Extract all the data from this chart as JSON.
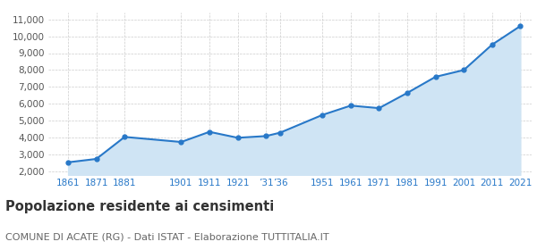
{
  "years": [
    1861,
    1871,
    1881,
    1901,
    1911,
    1921,
    1931,
    1936,
    1951,
    1961,
    1971,
    1981,
    1991,
    2001,
    2011,
    2021
  ],
  "population": [
    2550,
    2750,
    4050,
    3750,
    4350,
    4000,
    4100,
    4300,
    5350,
    5900,
    5750,
    6650,
    7600,
    8000,
    9500,
    10600
  ],
  "yticks": [
    2000,
    3000,
    4000,
    5000,
    6000,
    7000,
    8000,
    9000,
    10000,
    11000
  ],
  "ylim": [
    1800,
    11400
  ],
  "xlim": [
    1854,
    2025
  ],
  "x_tick_positions": [
    1861,
    1871,
    1881,
    1901,
    1911,
    1921,
    1931,
    1936,
    1951,
    1961,
    1971,
    1981,
    1991,
    2001,
    2011,
    2021
  ],
  "x_tick_labels": [
    "1861",
    "1871",
    "1881",
    "1901",
    "1911",
    "1921",
    "’31",
    "’36",
    "1951",
    "1961",
    "1971",
    "1981",
    "1991",
    "2001",
    "2011",
    "2021"
  ],
  "line_color": "#2878c8",
  "fill_color": "#cfe4f4",
  "marker_color": "#2878c8",
  "grid_color": "#cccccc",
  "bg_color": "#ffffff",
  "title": "Popolazione residente ai censimenti",
  "subtitle": "COMUNE DI ACATE (RG) - Dati ISTAT - Elaborazione TUTTITALIA.IT",
  "title_fontsize": 10.5,
  "subtitle_fontsize": 8,
  "tick_label_color": "#2878c8",
  "ytick_label_color": "#555555"
}
